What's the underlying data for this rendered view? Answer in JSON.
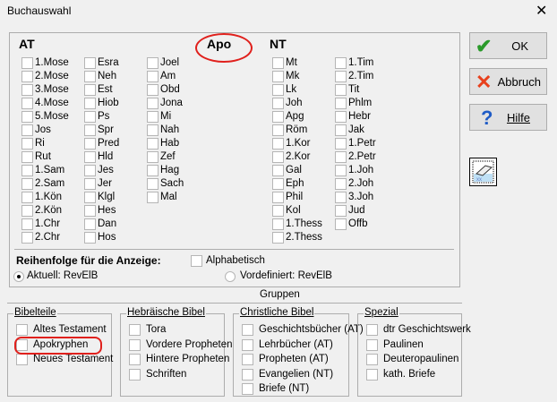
{
  "window": {
    "title": "Buchauswahl",
    "close": "✕"
  },
  "at": {
    "header": "AT",
    "cols": [
      [
        "1.Mose",
        "2.Mose",
        "3.Mose",
        "4.Mose",
        "5.Mose",
        "Jos",
        "Ri",
        "Rut",
        "1.Sam",
        "2.Sam",
        "1.Kön",
        "2.Kön",
        "1.Chr",
        "2.Chr"
      ],
      [
        "Esra",
        "Neh",
        "Est",
        "Hiob",
        "Ps",
        "Spr",
        "Pred",
        "Hld",
        "Jes",
        "Jer",
        "Klgl",
        "Hes",
        "Dan",
        "Hos"
      ],
      [
        "Joel",
        "Am",
        "Obd",
        "Jona",
        "Mi",
        "Nah",
        "Hab",
        "Zef",
        "Hag",
        "Sach",
        "Mal"
      ]
    ]
  },
  "apo": {
    "header": "Apo"
  },
  "nt": {
    "header": "NT",
    "cols": [
      [
        "Mt",
        "Mk",
        "Lk",
        "Joh",
        "Apg",
        "Röm",
        "1.Kor",
        "2.Kor",
        "Gal",
        "Eph",
        "Phil",
        "Kol",
        "1.Thess",
        "2.Thess"
      ],
      [
        "1.Tim",
        "2.Tim",
        "Tit",
        "Phlm",
        "Hebr",
        "Jak",
        "1.Petr",
        "2.Petr",
        "1.Joh",
        "2.Joh",
        "3.Joh",
        "Jud",
        "Offb"
      ]
    ]
  },
  "order": {
    "label": "Reihenfolge für die Anzeige:",
    "alphabetic": "Alphabetisch",
    "current": "Aktuell: RevElB",
    "predefined": "Vordefiniert: RevElB",
    "selected": "current"
  },
  "buttons": {
    "ok": "OK",
    "cancel": "Abbruch",
    "help": "Hilfe"
  },
  "groups": {
    "title": "Gruppen",
    "boxes": [
      {
        "title": "Bibelteile",
        "items": [
          "Altes Testament",
          "Apokryphen",
          "Neues Testament"
        ]
      },
      {
        "title": "Hebräische Bibel",
        "items": [
          "Tora",
          "Vordere Propheten",
          "Hintere Propheten",
          "Schriften"
        ]
      },
      {
        "title": "Christliche Bibel",
        "items": [
          "Geschichtsbücher (AT)",
          "Lehrbücher (AT)",
          "Propheten (AT)",
          "Evangelien (NT)",
          "Briefe (NT)"
        ]
      },
      {
        "title": "Spezial",
        "items": [
          "dtr Geschichtswerk",
          "Paulinen",
          "Deuteropaulinen",
          "kath. Briefe"
        ]
      }
    ]
  },
  "colors": {
    "annotation": "#e0201c",
    "ok": "#2a9a2a",
    "cancel": "#e8401c",
    "help": "#1e5bc6"
  }
}
